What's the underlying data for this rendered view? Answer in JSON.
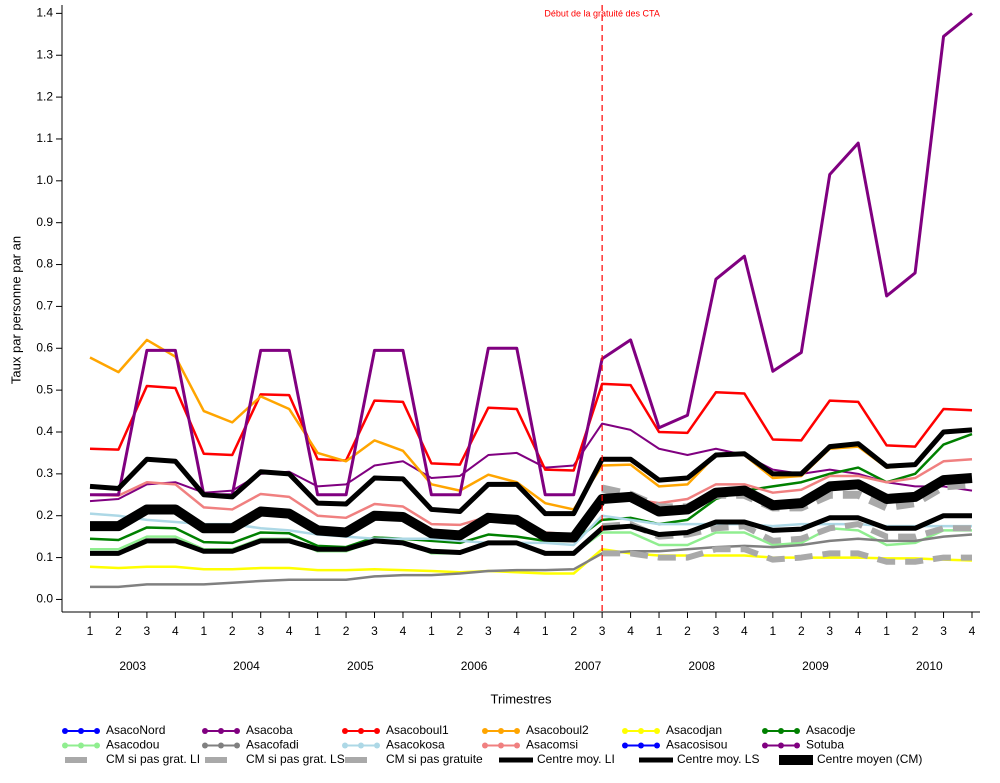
{
  "chart_data": {
    "type": "line",
    "annotation": {
      "text": "Début de la gratuité des CTA",
      "at": 18,
      "color": "#ff0000"
    },
    "xlabel": "Trimestres",
    "ylabel": "Taux par personne par an",
    "categories": [
      "1",
      "2",
      "3",
      "4",
      "1",
      "2",
      "3",
      "4",
      "1",
      "2",
      "3",
      "4",
      "1",
      "2",
      "3",
      "4",
      "1",
      "2",
      "3",
      "4",
      "1",
      "2",
      "3",
      "4",
      "1",
      "2",
      "3",
      "4",
      "1",
      "2",
      "3",
      "4"
    ],
    "years": [
      "2003",
      "2004",
      "2005",
      "2006",
      "2007",
      "2008",
      "2009",
      "2010"
    ],
    "ylim": [
      -0.03,
      1.42
    ],
    "yticks": [
      {
        "value": 0,
        "label": "0.0"
      },
      0.1,
      0.2,
      0.3,
      0.4,
      0.5,
      0.6,
      0.7,
      0.8,
      0.9,
      {
        "value": 1,
        "label": "1.0"
      },
      1.1,
      1.2,
      1.3,
      1.4
    ],
    "series": [
      {
        "name": "AsacoNord",
        "color": "#0000ff",
        "width": 2,
        "values": [
          null,
          null,
          null,
          null,
          null,
          null,
          null,
          null,
          null,
          null,
          null,
          null,
          null,
          null,
          null,
          null,
          null,
          null,
          null,
          null,
          null,
          null,
          null,
          null,
          null,
          null,
          null,
          null,
          null,
          null,
          null,
          null
        ]
      },
      {
        "name": "Asacoba",
        "color": "#800080",
        "width": 2,
        "values": [
          0.235,
          0.24,
          0.275,
          0.28,
          0.255,
          0.26,
          0.3,
          0.305,
          0.27,
          0.275,
          0.32,
          0.33,
          0.29,
          0.295,
          0.345,
          0.35,
          0.315,
          0.32,
          0.42,
          0.405,
          0.36,
          0.345,
          0.36,
          0.345,
          0.31,
          0.3,
          0.31,
          0.3,
          0.28,
          0.27,
          0.27,
          0.26
        ]
      },
      {
        "name": "Asacoboul1",
        "color": "#ff0000",
        "width": 2.5,
        "values": [
          0.36,
          0.358,
          0.51,
          0.505,
          0.348,
          0.345,
          0.49,
          0.488,
          0.335,
          0.332,
          0.475,
          0.472,
          0.325,
          0.322,
          0.458,
          0.455,
          0.31,
          0.308,
          0.515,
          0.512,
          0.4,
          0.398,
          0.495,
          0.492,
          0.382,
          0.38,
          0.475,
          0.472,
          0.368,
          0.365,
          0.455,
          0.452
        ]
      },
      {
        "name": "Asacoboul2",
        "color": "#ffa500",
        "width": 2.5,
        "values": [
          0.578,
          0.543,
          0.62,
          0.58,
          0.45,
          0.423,
          0.485,
          0.455,
          0.35,
          0.33,
          0.38,
          0.355,
          0.275,
          0.26,
          0.298,
          0.28,
          0.23,
          0.215,
          0.32,
          0.322,
          0.27,
          0.275,
          0.345,
          0.345,
          0.29,
          0.295,
          0.36,
          0.365,
          0.315,
          0.32,
          0.4,
          0.405
        ]
      },
      {
        "name": "Asacodjan",
        "color": "#ffff00",
        "width": 2.5,
        "values": [
          0.078,
          0.075,
          0.078,
          0.078,
          0.072,
          0.072,
          0.075,
          0.075,
          0.07,
          0.07,
          0.072,
          0.07,
          0.068,
          0.065,
          0.068,
          0.065,
          0.062,
          0.062,
          0.12,
          0.11,
          0.105,
          0.105,
          0.105,
          0.105,
          0.1,
          0.1,
          0.1,
          0.1,
          0.098,
          0.098,
          0.095,
          0.093
        ]
      },
      {
        "name": "Asacodje",
        "color": "#008000",
        "width": 2.5,
        "values": [
          0.145,
          0.142,
          0.172,
          0.17,
          0.137,
          0.135,
          0.16,
          0.158,
          0.128,
          0.125,
          0.148,
          0.145,
          0.14,
          0.135,
          0.155,
          0.15,
          0.14,
          0.14,
          0.19,
          0.195,
          0.18,
          0.19,
          0.24,
          0.26,
          0.27,
          0.28,
          0.3,
          0.315,
          0.28,
          0.3,
          0.37,
          0.395
        ]
      },
      {
        "name": "Asacodou",
        "color": "#90ee90",
        "width": 2.5,
        "values": [
          0.12,
          0.12,
          0.15,
          0.15,
          0.12,
          0.12,
          0.145,
          0.145,
          0.115,
          0.115,
          0.14,
          0.14,
          0.11,
          0.11,
          0.135,
          0.135,
          0.11,
          0.11,
          0.16,
          0.16,
          0.13,
          0.13,
          0.16,
          0.16,
          0.13,
          0.135,
          0.17,
          0.165,
          0.13,
          0.135,
          0.165,
          0.165
        ]
      },
      {
        "name": "Asacofadi",
        "color": "#808080",
        "width": 2.5,
        "values": [
          0.03,
          0.03,
          0.036,
          0.036,
          0.036,
          0.04,
          0.044,
          0.047,
          0.047,
          0.047,
          0.055,
          0.058,
          0.058,
          0.062,
          0.068,
          0.07,
          0.07,
          0.072,
          0.11,
          0.115,
          0.115,
          0.12,
          0.125,
          0.128,
          0.125,
          0.13,
          0.14,
          0.145,
          0.14,
          0.14,
          0.15,
          0.155
        ]
      },
      {
        "name": "Asacokosa",
        "color": "#add8e6",
        "width": 2.5,
        "values": [
          0.205,
          0.2,
          0.19,
          0.185,
          0.18,
          0.18,
          0.17,
          0.165,
          0.155,
          0.15,
          0.145,
          0.145,
          0.145,
          0.14,
          0.135,
          0.135,
          0.135,
          0.13,
          0.2,
          0.19,
          0.18,
          0.18,
          0.18,
          0.18,
          0.175,
          0.18,
          0.18,
          0.18,
          0.175,
          0.175,
          0.175,
          0.175
        ]
      },
      {
        "name": "Asacomsi",
        "color": "#f08080",
        "width": 2.5,
        "values": [
          0.25,
          0.248,
          0.28,
          0.275,
          0.22,
          0.215,
          0.252,
          0.245,
          0.2,
          0.195,
          0.228,
          0.222,
          0.18,
          0.178,
          0.198,
          0.195,
          0.16,
          0.155,
          0.24,
          0.24,
          0.23,
          0.24,
          0.275,
          0.275,
          0.255,
          0.262,
          0.295,
          0.295,
          0.28,
          0.29,
          0.33,
          0.335
        ]
      },
      {
        "name": "Asacosisou",
        "color": "#0000ff",
        "width": 2,
        "values": [
          null,
          null,
          null,
          null,
          null,
          null,
          null,
          null,
          null,
          null,
          null,
          null,
          null,
          null,
          null,
          null,
          null,
          null,
          null,
          null,
          null,
          null,
          null,
          null,
          null,
          null,
          null,
          null,
          null,
          null,
          null,
          null
        ]
      },
      {
        "name": "Sotuba",
        "color": "#800080",
        "width": 3,
        "values": [
          0.25,
          0.25,
          0.595,
          0.595,
          0.25,
          0.25,
          0.595,
          0.595,
          0.25,
          0.25,
          0.595,
          0.595,
          0.25,
          0.25,
          0.6,
          0.6,
          0.25,
          0.25,
          0.575,
          0.62,
          0.41,
          0.44,
          0.765,
          0.82,
          0.545,
          0.59,
          1.015,
          1.09,
          0.725,
          0.78,
          1.345,
          1.4
        ]
      },
      {
        "name": "CM si pas grat. LI",
        "color": "#a9a9a9",
        "width": 6,
        "dash": true,
        "values": [
          null,
          null,
          null,
          null,
          null,
          null,
          null,
          null,
          null,
          null,
          null,
          null,
          null,
          null,
          null,
          null,
          null,
          null,
          0.11,
          0.11,
          0.1,
          0.1,
          0.12,
          0.12,
          0.095,
          0.1,
          0.11,
          0.11,
          0.09,
          0.09,
          0.1,
          0.1
        ]
      },
      {
        "name": "CM si pas grat. LS",
        "color": "#a9a9a9",
        "width": 6,
        "dash": true,
        "values": [
          null,
          null,
          null,
          null,
          null,
          null,
          null,
          null,
          null,
          null,
          null,
          null,
          null,
          null,
          null,
          null,
          null,
          null,
          0.175,
          0.18,
          0.15,
          0.155,
          0.17,
          0.175,
          0.14,
          0.145,
          0.17,
          0.18,
          0.15,
          0.15,
          0.17,
          0.17
        ]
      },
      {
        "name": "CM si pas gratuite",
        "color": "#a9a9a9",
        "width": 8,
        "dash": true,
        "values": [
          null,
          null,
          null,
          null,
          null,
          null,
          null,
          null,
          null,
          null,
          null,
          null,
          null,
          null,
          null,
          null,
          null,
          null,
          0.265,
          0.25,
          0.22,
          0.22,
          0.25,
          0.25,
          0.22,
          0.22,
          0.25,
          0.25,
          0.22,
          0.23,
          0.27,
          0.275
        ]
      },
      {
        "name": "Centre moy. LI",
        "color": "#000000",
        "width": 5,
        "values": [
          0.11,
          0.11,
          0.14,
          0.14,
          0.115,
          0.115,
          0.14,
          0.14,
          0.12,
          0.12,
          0.14,
          0.135,
          0.115,
          0.112,
          0.135,
          0.135,
          0.11,
          0.11,
          0.17,
          0.175,
          0.155,
          0.16,
          0.185,
          0.185,
          0.165,
          0.168,
          0.195,
          0.195,
          0.17,
          0.17,
          0.2,
          0.2
        ]
      },
      {
        "name": "Centre moy. LS",
        "color": "#000000",
        "width": 5,
        "values": [
          0.27,
          0.265,
          0.335,
          0.33,
          0.25,
          0.245,
          0.305,
          0.3,
          0.23,
          0.228,
          0.29,
          0.288,
          0.215,
          0.21,
          0.275,
          0.275,
          0.205,
          0.205,
          0.335,
          0.335,
          0.285,
          0.29,
          0.345,
          0.348,
          0.3,
          0.3,
          0.365,
          0.372,
          0.318,
          0.322,
          0.4,
          0.405
        ]
      },
      {
        "name": "Centre moyen  (CM)",
        "color": "#000000",
        "width": 10,
        "values": [
          0.175,
          0.175,
          0.215,
          0.215,
          0.17,
          0.17,
          0.21,
          0.205,
          0.165,
          0.16,
          0.2,
          0.197,
          0.158,
          0.153,
          0.195,
          0.19,
          0.15,
          0.148,
          0.24,
          0.245,
          0.21,
          0.215,
          0.255,
          0.26,
          0.225,
          0.23,
          0.27,
          0.275,
          0.24,
          0.245,
          0.285,
          0.29
        ]
      }
    ]
  }
}
